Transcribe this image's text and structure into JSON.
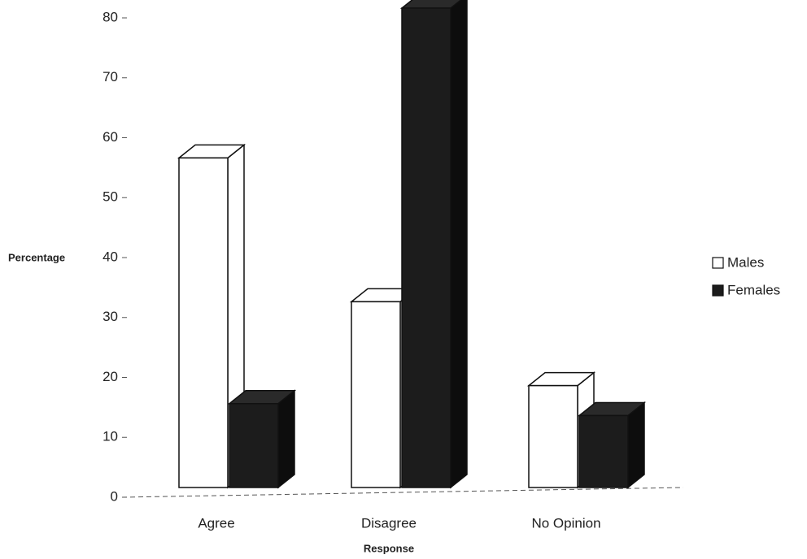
{
  "chart_data": {
    "type": "bar3d",
    "x_label": "Response",
    "y_label": "Percentage",
    "categories": [
      "Agree",
      "Disagree",
      "No Opinion"
    ],
    "series": [
      {
        "name": "Males",
        "color": "#ffffff",
        "values": [
          55,
          31,
          17
        ]
      },
      {
        "name": "Females",
        "color": "#1c1c1c",
        "values": [
          14,
          80,
          12
        ]
      }
    ],
    "ylim": [
      0,
      80
    ],
    "yticks": [
      0,
      10,
      20,
      30,
      40,
      50,
      60,
      70,
      80
    ],
    "legend": "right"
  }
}
